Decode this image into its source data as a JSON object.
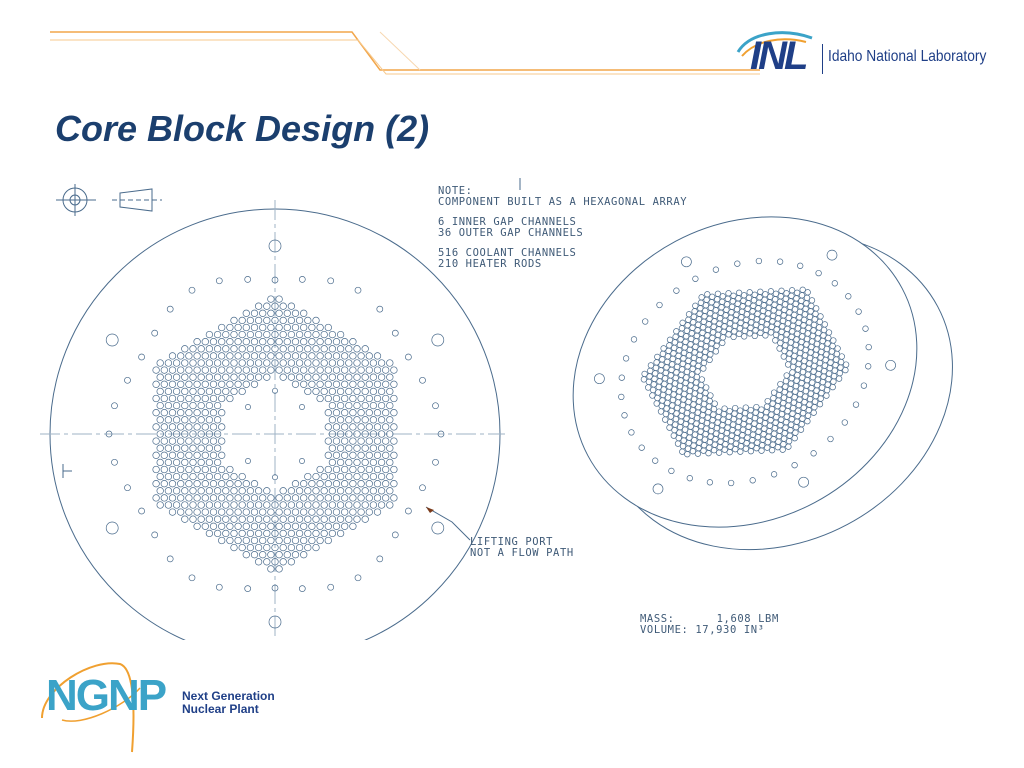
{
  "header": {
    "org_mark": "INL",
    "org_name": "Idaho National Laboratory"
  },
  "slide": {
    "title": "Core Block Design (2)"
  },
  "drawing": {
    "note_heading": "NOTE:",
    "note_text": "COMPONENT BUILT AS A HEXAGONAL ARRAY",
    "channel_counts": [
      {
        "line": "6  INNER GAP CHANNELS"
      },
      {
        "line": "36 OUTER GAP CHANNELS"
      }
    ],
    "rod_counts": [
      {
        "line": "516  COOLANT CHANNELS"
      },
      {
        "line": "210  HEATER RODS"
      }
    ],
    "callout_lines": [
      "LIFTING PORT",
      "NOT A FLOW PATH"
    ],
    "mass_label": "MASS:",
    "mass_value": "1,608 LBM",
    "volume_label": "VOLUME:",
    "volume_value": "17,930 IN³",
    "line_color": "#4a6b8c"
  },
  "footer": {
    "logo_mark": "NGNP",
    "logo_line1": "Next Generation",
    "logo_line2": "Nuclear Plant",
    "accent_color": "#f0a030"
  }
}
